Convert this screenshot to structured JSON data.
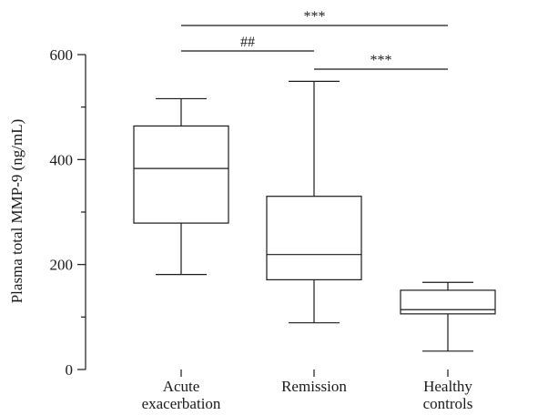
{
  "chart_data": {
    "type": "box",
    "ylabel": "Plasma total MMP-9 (ng/mL)",
    "xlabel": "",
    "ylim": [
      0,
      600
    ],
    "yticks": [
      0,
      200,
      400,
      600
    ],
    "yticks_minor": [
      100,
      300,
      500
    ],
    "grid": false,
    "categories": [
      [
        "Acute",
        "exacerbation"
      ],
      [
        "Remission"
      ],
      [
        "Healthy",
        "controls"
      ]
    ],
    "boxes": [
      {
        "min": 181,
        "q1": 279,
        "median": 383,
        "q3": 464,
        "max": 516
      },
      {
        "min": 89,
        "q1": 171,
        "median": 219,
        "q3": 330,
        "max": 549
      },
      {
        "min": 35,
        "q1": 106,
        "median": 114,
        "q3": 151,
        "max": 166
      }
    ],
    "significance": [
      {
        "from": 0,
        "to": 2,
        "label": "***",
        "level": 3
      },
      {
        "from": 0,
        "to": 1,
        "label": "##",
        "level": 2
      },
      {
        "from": 1,
        "to": 2,
        "label": "***",
        "level": 1
      }
    ],
    "colors": {
      "line": "#1a1a1a",
      "box_fill": "#ffffff"
    }
  }
}
